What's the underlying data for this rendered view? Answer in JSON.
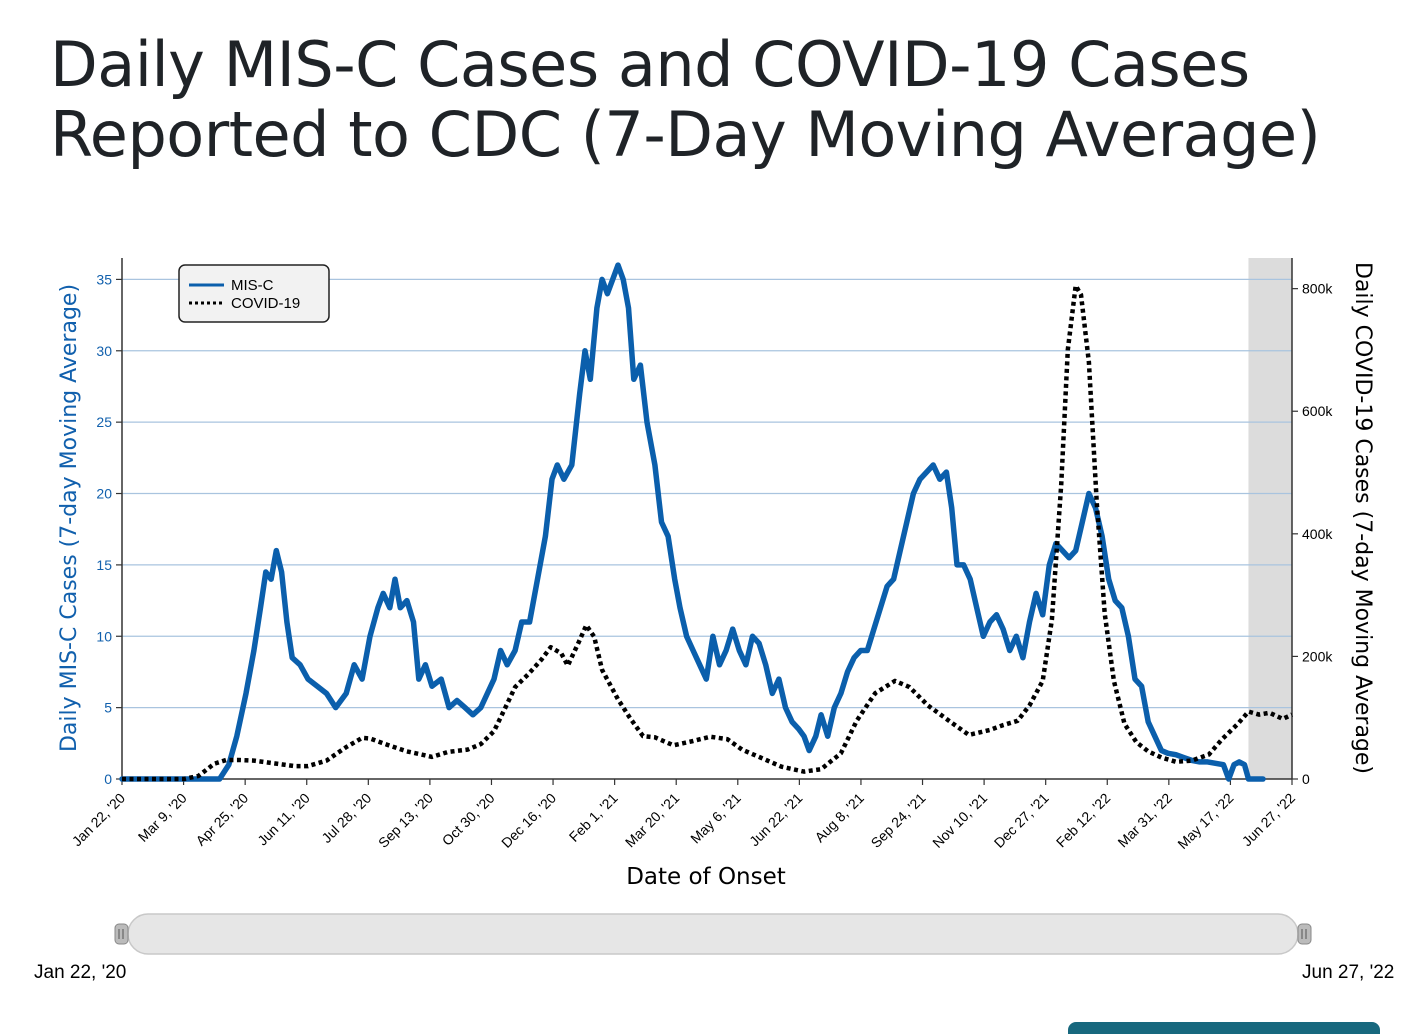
{
  "title": "Daily MIS-C Cases and COVID-19 Cases Reported to CDC (7-Day Moving Average)",
  "chart_data": {
    "type": "line",
    "title": "Daily MIS-C Cases and COVID-19 Cases Reported to CDC (7-Day Moving Average)",
    "xlabel": "Date of Onset",
    "ylabel_left": "Daily MIS-C Cases (7-day Moving Average)",
    "ylabel_right": "Daily COVID-19 Cases (7-day Moving Average)",
    "x_ticks": [
      "Jan 22, '20",
      "Mar 9, '20",
      "Apr 25, '20",
      "Jun 11, '20",
      "Jul 28, '20",
      "Sep 13, '20",
      "Oct 30, '20",
      "Dec 16, '20",
      "Feb 1, '21",
      "Mar 20, '21",
      "May 6, '21",
      "Jun 22, '21",
      "Aug 8, '21",
      "Sep 24, '21",
      "Nov 10, '21",
      "Dec 27, '21",
      "Feb 12, '22",
      "Mar 31, '22",
      "May 17, '22",
      "Jun 27, '22"
    ],
    "x_range": [
      "2020-01-22",
      "2022-06-27"
    ],
    "ylim_left": [
      0,
      36.5
    ],
    "ylim_right": [
      0,
      850000
    ],
    "left_ticks": [
      {
        "v": 0,
        "label": "0"
      },
      {
        "v": 5,
        "label": "5"
      },
      {
        "v": 10,
        "label": "10"
      },
      {
        "v": 15,
        "label": "15"
      },
      {
        "v": 20,
        "label": "20"
      },
      {
        "v": 25,
        "label": "25"
      },
      {
        "v": 30,
        "label": "30"
      },
      {
        "v": 35,
        "label": "35"
      }
    ],
    "right_ticks": [
      {
        "v": 0,
        "label": "0"
      },
      {
        "v": 200000,
        "label": "200k"
      },
      {
        "v": 400000,
        "label": "400k"
      },
      {
        "v": 600000,
        "label": "600k"
      },
      {
        "v": 800000,
        "label": "800k"
      }
    ],
    "grid": true,
    "legend_position": "top-left",
    "shaded_region": {
      "x": [
        "2022-05-25",
        "2022-06-27"
      ],
      "color": "#dcdcdc"
    },
    "range_selector": {
      "start_label": "Jan 22, '20",
      "end_label": "Jun 27, '22"
    },
    "series": [
      {
        "name": "MIS-C",
        "axis": "left",
        "style": "solid",
        "color": "#0b5fac",
        "points": [
          [
            "2020-01-22",
            0
          ],
          [
            "2020-04-05",
            0
          ],
          [
            "2020-04-12",
            1
          ],
          [
            "2020-04-18",
            3
          ],
          [
            "2020-04-25",
            6
          ],
          [
            "2020-05-01",
            9
          ],
          [
            "2020-05-06",
            12
          ],
          [
            "2020-05-10",
            14.5
          ],
          [
            "2020-05-14",
            14
          ],
          [
            "2020-05-18",
            16
          ],
          [
            "2020-05-22",
            14.5
          ],
          [
            "2020-05-26",
            11
          ],
          [
            "2020-05-30",
            8.5
          ],
          [
            "2020-06-05",
            8
          ],
          [
            "2020-06-11",
            7
          ],
          [
            "2020-06-18",
            6.5
          ],
          [
            "2020-06-25",
            6
          ],
          [
            "2020-07-02",
            5
          ],
          [
            "2020-07-10",
            6
          ],
          [
            "2020-07-16",
            8
          ],
          [
            "2020-07-22",
            7
          ],
          [
            "2020-07-28",
            10
          ],
          [
            "2020-08-03",
            12
          ],
          [
            "2020-08-07",
            13
          ],
          [
            "2020-08-12",
            12
          ],
          [
            "2020-08-16",
            14
          ],
          [
            "2020-08-20",
            12
          ],
          [
            "2020-08-25",
            12.5
          ],
          [
            "2020-08-30",
            11
          ],
          [
            "2020-09-03",
            7
          ],
          [
            "2020-09-08",
            8
          ],
          [
            "2020-09-13",
            6.5
          ],
          [
            "2020-09-20",
            7
          ],
          [
            "2020-09-26",
            5
          ],
          [
            "2020-10-02",
            5.5
          ],
          [
            "2020-10-08",
            5
          ],
          [
            "2020-10-14",
            4.5
          ],
          [
            "2020-10-20",
            5
          ],
          [
            "2020-10-25",
            6
          ],
          [
            "2020-10-30",
            7
          ],
          [
            "2020-11-04",
            9
          ],
          [
            "2020-11-09",
            8
          ],
          [
            "2020-11-15",
            9
          ],
          [
            "2020-11-20",
            11
          ],
          [
            "2020-11-26",
            11
          ],
          [
            "2020-12-02",
            14
          ],
          [
            "2020-12-08",
            17
          ],
          [
            "2020-12-13",
            21
          ],
          [
            "2020-12-17",
            22
          ],
          [
            "2020-12-22",
            21
          ],
          [
            "2020-12-28",
            22
          ],
          [
            "2021-01-03",
            27
          ],
          [
            "2021-01-07",
            30
          ],
          [
            "2021-01-11",
            28
          ],
          [
            "2021-01-16",
            33
          ],
          [
            "2021-01-20",
            35
          ],
          [
            "2021-01-24",
            34
          ],
          [
            "2021-01-28",
            35
          ],
          [
            "2021-02-01",
            36
          ],
          [
            "2021-02-05",
            35
          ],
          [
            "2021-02-09",
            33
          ],
          [
            "2021-02-13",
            28
          ],
          [
            "2021-02-18",
            29
          ],
          [
            "2021-02-23",
            25
          ],
          [
            "2021-03-01",
            22
          ],
          [
            "2021-03-06",
            18
          ],
          [
            "2021-03-11",
            17
          ],
          [
            "2021-03-16",
            14
          ],
          [
            "2021-03-20",
            12
          ],
          [
            "2021-03-25",
            10
          ],
          [
            "2021-03-30",
            9
          ],
          [
            "2021-04-04",
            8
          ],
          [
            "2021-04-09",
            7
          ],
          [
            "2021-04-14",
            10
          ],
          [
            "2021-04-19",
            8
          ],
          [
            "2021-04-24",
            9
          ],
          [
            "2021-04-29",
            10.5
          ],
          [
            "2021-05-04",
            9
          ],
          [
            "2021-05-09",
            8
          ],
          [
            "2021-05-14",
            10
          ],
          [
            "2021-05-19",
            9.5
          ],
          [
            "2021-05-24",
            8
          ],
          [
            "2021-05-29",
            6
          ],
          [
            "2021-06-03",
            7
          ],
          [
            "2021-06-08",
            5
          ],
          [
            "2021-06-13",
            4
          ],
          [
            "2021-06-18",
            3.5
          ],
          [
            "2021-06-22",
            3
          ],
          [
            "2021-06-26",
            2
          ],
          [
            "2021-07-01",
            3
          ],
          [
            "2021-07-05",
            4.5
          ],
          [
            "2021-07-10",
            3
          ],
          [
            "2021-07-15",
            5
          ],
          [
            "2021-07-20",
            6
          ],
          [
            "2021-07-25",
            7.5
          ],
          [
            "2021-07-30",
            8.5
          ],
          [
            "2021-08-04",
            9
          ],
          [
            "2021-08-09",
            9
          ],
          [
            "2021-08-14",
            10.5
          ],
          [
            "2021-08-19",
            12
          ],
          [
            "2021-08-24",
            13.5
          ],
          [
            "2021-08-29",
            14
          ],
          [
            "2021-09-03",
            16
          ],
          [
            "2021-09-08",
            18
          ],
          [
            "2021-09-13",
            20
          ],
          [
            "2021-09-18",
            21
          ],
          [
            "2021-09-23",
            21.5
          ],
          [
            "2021-09-28",
            22
          ],
          [
            "2021-10-03",
            21
          ],
          [
            "2021-10-08",
            21.5
          ],
          [
            "2021-10-12",
            19
          ],
          [
            "2021-10-16",
            15
          ],
          [
            "2021-10-21",
            15
          ],
          [
            "2021-10-26",
            14
          ],
          [
            "2021-10-31",
            12
          ],
          [
            "2021-11-05",
            10
          ],
          [
            "2021-11-10",
            11
          ],
          [
            "2021-11-15",
            11.5
          ],
          [
            "2021-11-20",
            10.5
          ],
          [
            "2021-11-25",
            9
          ],
          [
            "2021-11-30",
            10
          ],
          [
            "2021-12-05",
            8.5
          ],
          [
            "2021-12-10",
            11
          ],
          [
            "2021-12-15",
            13
          ],
          [
            "2021-12-20",
            11.5
          ],
          [
            "2021-12-25",
            15
          ],
          [
            "2021-12-30",
            16.5
          ],
          [
            "2022-01-04",
            16
          ],
          [
            "2022-01-09",
            15.5
          ],
          [
            "2022-01-14",
            16
          ],
          [
            "2022-01-19",
            18
          ],
          [
            "2022-01-24",
            20
          ],
          [
            "2022-01-29",
            19
          ],
          [
            "2022-02-03",
            17
          ],
          [
            "2022-02-08",
            14
          ],
          [
            "2022-02-13",
            12.5
          ],
          [
            "2022-02-18",
            12
          ],
          [
            "2022-02-23",
            10
          ],
          [
            "2022-02-28",
            7
          ],
          [
            "2022-03-05",
            6.5
          ],
          [
            "2022-03-10",
            4
          ],
          [
            "2022-03-15",
            3
          ],
          [
            "2022-03-20",
            2
          ],
          [
            "2022-03-25",
            1.8
          ],
          [
            "2022-03-31",
            1.7
          ],
          [
            "2022-04-06",
            1.5
          ],
          [
            "2022-04-12",
            1.3
          ],
          [
            "2022-04-18",
            1.2
          ],
          [
            "2022-04-24",
            1.2
          ],
          [
            "2022-04-30",
            1.1
          ],
          [
            "2022-05-06",
            1
          ],
          [
            "2022-05-10",
            0
          ],
          [
            "2022-05-14",
            1
          ],
          [
            "2022-05-18",
            1.2
          ],
          [
            "2022-05-22",
            1
          ],
          [
            "2022-05-25",
            0
          ],
          [
            "2022-06-05",
            0
          ]
        ]
      },
      {
        "name": "COVID-19",
        "axis": "right",
        "style": "dotted",
        "color": "#000000",
        "points": [
          [
            "2020-01-22",
            0
          ],
          [
            "2020-03-09",
            0
          ],
          [
            "2020-03-20",
            5000
          ],
          [
            "2020-04-01",
            25000
          ],
          [
            "2020-04-10",
            31000
          ],
          [
            "2020-04-20",
            31000
          ],
          [
            "2020-05-01",
            30000
          ],
          [
            "2020-05-15",
            26000
          ],
          [
            "2020-06-01",
            21000
          ],
          [
            "2020-06-11",
            21000
          ],
          [
            "2020-06-25",
            30000
          ],
          [
            "2020-07-10",
            52000
          ],
          [
            "2020-07-22",
            67000
          ],
          [
            "2020-07-28",
            66000
          ],
          [
            "2020-08-10",
            56000
          ],
          [
            "2020-08-25",
            45000
          ],
          [
            "2020-09-05",
            40000
          ],
          [
            "2020-09-13",
            36000
          ],
          [
            "2020-09-25",
            44000
          ],
          [
            "2020-10-10",
            48000
          ],
          [
            "2020-10-20",
            57000
          ],
          [
            "2020-10-30",
            78000
          ],
          [
            "2020-11-08",
            118000
          ],
          [
            "2020-11-15",
            150000
          ],
          [
            "2020-11-25",
            171000
          ],
          [
            "2020-12-05",
            195000
          ],
          [
            "2020-12-12",
            215000
          ],
          [
            "2020-12-20",
            205000
          ],
          [
            "2020-12-25",
            185000
          ],
          [
            "2021-01-02",
            222000
          ],
          [
            "2021-01-08",
            251000
          ],
          [
            "2021-01-14",
            232000
          ],
          [
            "2021-01-20",
            178000
          ],
          [
            "2021-02-01",
            130000
          ],
          [
            "2021-02-10",
            100000
          ],
          [
            "2021-02-20",
            70000
          ],
          [
            "2021-03-01",
            68000
          ],
          [
            "2021-03-15",
            55000
          ],
          [
            "2021-03-30",
            62000
          ],
          [
            "2021-04-12",
            69000
          ],
          [
            "2021-04-25",
            65000
          ],
          [
            "2021-05-06",
            48000
          ],
          [
            "2021-05-20",
            35000
          ],
          [
            "2021-06-05",
            20000
          ],
          [
            "2021-06-22",
            12000
          ],
          [
            "2021-07-05",
            16000
          ],
          [
            "2021-07-20",
            42000
          ],
          [
            "2021-08-01",
            95000
          ],
          [
            "2021-08-15",
            140000
          ],
          [
            "2021-08-30",
            160000
          ],
          [
            "2021-09-10",
            150000
          ],
          [
            "2021-09-24",
            120000
          ],
          [
            "2021-10-10",
            95000
          ],
          [
            "2021-10-25",
            72000
          ],
          [
            "2021-11-10",
            80000
          ],
          [
            "2021-11-20",
            88000
          ],
          [
            "2021-12-01",
            95000
          ],
          [
            "2021-12-10",
            120000
          ],
          [
            "2021-12-20",
            160000
          ],
          [
            "2021-12-27",
            260000
          ],
          [
            "2022-01-03",
            480000
          ],
          [
            "2022-01-08",
            700000
          ],
          [
            "2022-01-14",
            805000
          ],
          [
            "2022-01-18",
            790000
          ],
          [
            "2022-01-24",
            680000
          ],
          [
            "2022-01-30",
            450000
          ],
          [
            "2022-02-05",
            270000
          ],
          [
            "2022-02-12",
            160000
          ],
          [
            "2022-02-20",
            90000
          ],
          [
            "2022-03-01",
            60000
          ],
          [
            "2022-03-10",
            45000
          ],
          [
            "2022-03-20",
            35000
          ],
          [
            "2022-03-31",
            28000
          ],
          [
            "2022-04-12",
            30000
          ],
          [
            "2022-04-25",
            40000
          ],
          [
            "2022-05-05",
            65000
          ],
          [
            "2022-05-17",
            90000
          ],
          [
            "2022-05-25",
            110000
          ],
          [
            "2022-06-02",
            105000
          ],
          [
            "2022-06-10",
            108000
          ],
          [
            "2022-06-20",
            98000
          ],
          [
            "2022-06-27",
            105000
          ]
        ]
      }
    ]
  }
}
